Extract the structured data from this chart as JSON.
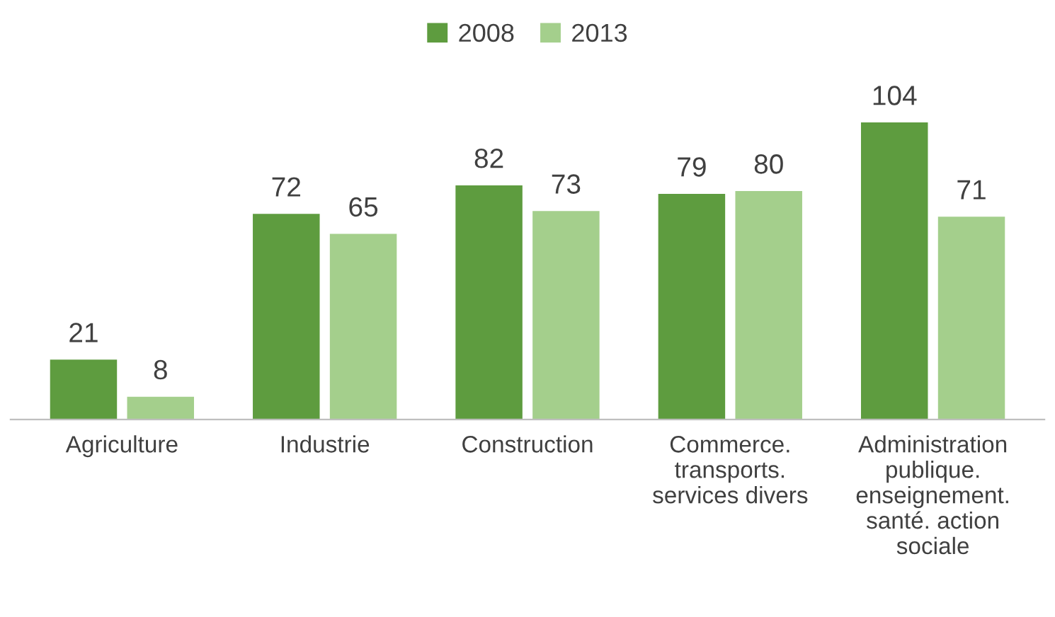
{
  "chart_data": {
    "type": "bar",
    "categories": [
      "Agriculture",
      "Industrie",
      "Construction",
      "Commerce.\ntransports.\nservices divers",
      "Administration\npublique.\nenseignement.\nsanté. action\nsociale"
    ],
    "series": [
      {
        "name": "2008",
        "color": "#5e9c3f",
        "values": [
          21,
          72,
          82,
          79,
          104
        ]
      },
      {
        "name": "2013",
        "color": "#a4cf8c",
        "values": [
          8,
          65,
          73,
          80,
          71
        ]
      }
    ],
    "data_labels": true,
    "legend": "top"
  }
}
